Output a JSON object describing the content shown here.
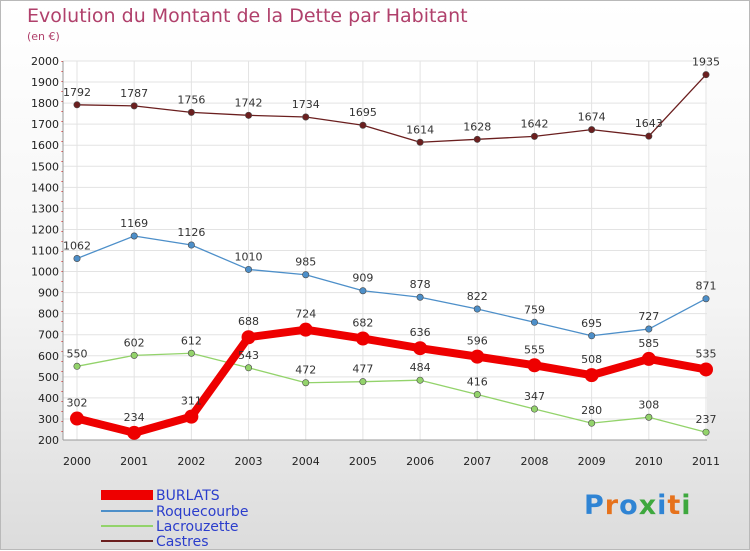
{
  "title": "Evolution du Montant de la Dette par Habitant",
  "subtitle": "(en €)",
  "logo": {
    "text": "Proxiti",
    "colors": [
      "#2f84d4",
      "#e6721c",
      "#2f84d4",
      "#3ea83e",
      "#2f84d4",
      "#e6721c",
      "#3ea83e"
    ]
  },
  "chart_data": {
    "type": "line",
    "title": "Evolution du Montant de la Dette par Habitant",
    "subtitle": "(en €)",
    "x": [
      "2000",
      "2001",
      "2002",
      "2003",
      "2004",
      "2005",
      "2006",
      "2007",
      "2008",
      "2009",
      "2010",
      "2011"
    ],
    "ylim": [
      200,
      2000
    ],
    "yticks": [
      200,
      300,
      400,
      500,
      600,
      700,
      800,
      900,
      1000,
      1100,
      1200,
      1300,
      1400,
      1500,
      1600,
      1700,
      1800,
      1900,
      2000
    ],
    "grid": true,
    "legend_position": "bottom-left",
    "series": [
      {
        "name": "Castres",
        "color": "#6b1f1f",
        "values": [
          1792,
          1787,
          1756,
          1742,
          1734,
          1695,
          1614,
          1628,
          1642,
          1674,
          1643,
          1935
        ]
      },
      {
        "name": "Roquecourbe",
        "color": "#4d8fc9",
        "values": [
          1062,
          1169,
          1126,
          1010,
          985,
          909,
          878,
          822,
          759,
          695,
          727,
          871
        ]
      },
      {
        "name": "Lacrouzette",
        "color": "#93d36b",
        "values": [
          550,
          602,
          612,
          543,
          472,
          477,
          484,
          416,
          347,
          280,
          308,
          237
        ]
      },
      {
        "name": "BURLATS",
        "color": "#ee0000",
        "values": [
          302,
          234,
          311,
          688,
          724,
          682,
          636,
          596,
          555,
          508,
          585,
          535
        ]
      }
    ]
  },
  "legend": [
    {
      "label": "BURLATS",
      "color": "#ee0000"
    },
    {
      "label": "Roquecourbe",
      "color": "#4d8fc9"
    },
    {
      "label": "Lacrouzette",
      "color": "#93d36b"
    },
    {
      "label": "Castres",
      "color": "#6b1f1f"
    }
  ]
}
